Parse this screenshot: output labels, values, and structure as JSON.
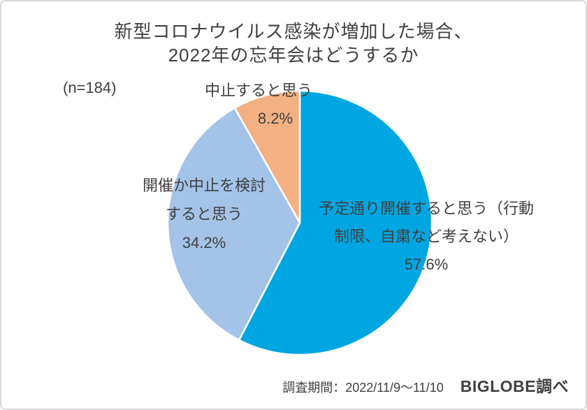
{
  "header": {
    "title_line1": "新型コロナウイルス感染が増加した場合、",
    "title_line2": "2022年の忘年会はどうするか",
    "sample_size": "(n=184)"
  },
  "callouts": {
    "cancel": {
      "title": "中止すると思う",
      "pct": "8.2%"
    },
    "consider": {
      "line1": "開催か中止を検討",
      "line2": "すると思う",
      "pct": "34.2%"
    },
    "proceed": {
      "line1": "予定通り開催すると思う（行動",
      "line2": "制限、自粛など考えない）",
      "pct": "57.6%"
    }
  },
  "footer": {
    "period": "調査期間：2022/11/9～11/10",
    "source": "BIGLOBE調べ"
  },
  "chart_data": {
    "type": "pie",
    "title": "新型コロナウイルス感染が増加した場合、2022年の忘年会はどうするか",
    "sample_size": 184,
    "unit": "%",
    "start_angle": "top",
    "direction": "clockwise",
    "slices": [
      {
        "id": "proceed",
        "label": "予定通り開催すると思う（行動制限、自粛など考えない）",
        "value": 57.6,
        "color": "#00A6E2"
      },
      {
        "id": "consider",
        "label": "開催か中止を検討すると思う",
        "value": 34.2,
        "color": "#A3C3E8"
      },
      {
        "id": "cancel",
        "label": "中止すると思う",
        "value": 8.2,
        "color": "#F3B083"
      }
    ],
    "slice_border_color": "#FFFFFF",
    "text_color": "#404040",
    "legend": "none",
    "labels_on_chart": true
  }
}
